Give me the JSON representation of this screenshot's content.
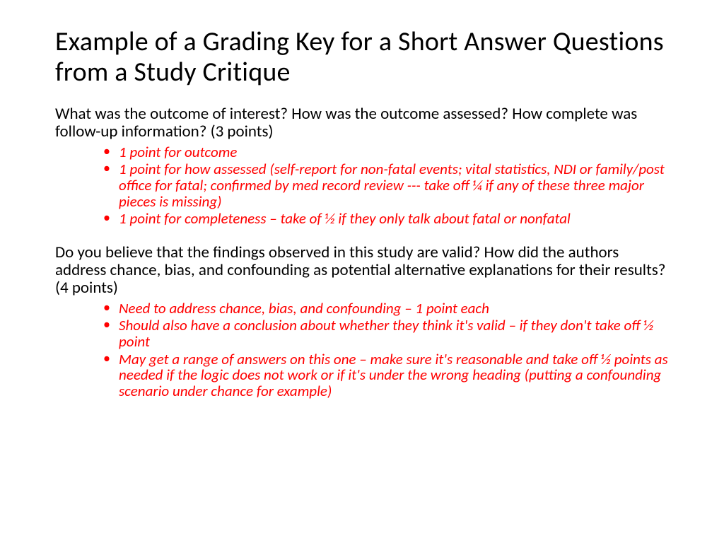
{
  "title": "Example of a Grading Key for a Short Answer Questions from a Study Critique",
  "sections": [
    {
      "question": "What was the outcome of interest? How was the outcome assessed? How complete was follow-up information? (3 points)",
      "criteria": [
        "1 point for outcome",
        "1 point for how assessed (self-report for non-fatal events; vital statistics, NDI or family/post office for fatal; confirmed by med record review --- take off ¼ if any of these three major pieces is missing)",
        "1 point for completeness – take of ½ if they only talk about fatal or nonfatal"
      ]
    },
    {
      "question": "Do you believe that the findings observed in this study are valid? How did the authors address chance, bias, and confounding as potential alternative explanations for their results? (4 points)",
      "criteria": [
        "Need to address chance, bias, and confounding – 1 point each",
        "Should also have a conclusion about whether they think it's valid – if they don't take off ½ point",
        "May get a range of answers on this one – make sure it's reasonable and take off ½ points as needed if the logic does not work or if it's under the wrong heading (putting a confounding scenario under chance for example)"
      ]
    }
  ],
  "colors": {
    "title": "#000000",
    "question": "#000000",
    "criteria": "#ff0000",
    "bullet": "#ff0000",
    "background": "#ffffff"
  },
  "typography": {
    "title_fontsize": 38,
    "question_fontsize": 23,
    "criteria_fontsize": 21,
    "criteria_style": "italic",
    "font_family": "Calibri"
  }
}
